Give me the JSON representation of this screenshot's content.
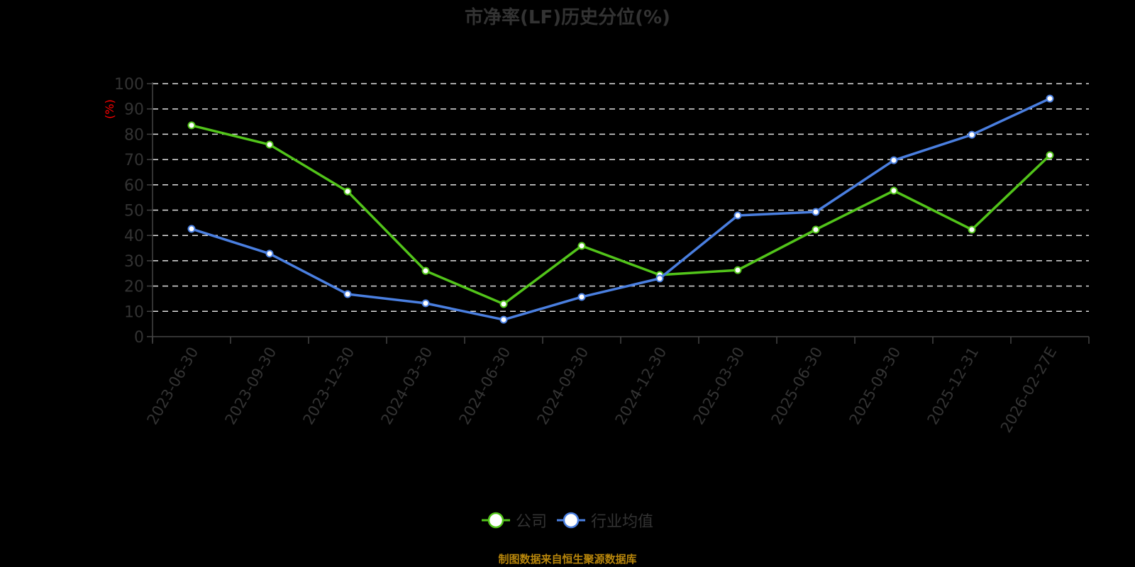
{
  "title": "市净率(LF)历史分位(%)",
  "footer": "制图数据来自恒生聚源数据库",
  "legend": [
    {
      "label": "公司",
      "color": "#52C41A"
    },
    {
      "label": "行业均值",
      "color": "#4A7FE0"
    }
  ],
  "chart_data": {
    "type": "line",
    "title": "市净率(LF)历史分位(%)",
    "xlabel": "",
    "ylabel": "(%)",
    "ylim": [
      0,
      100
    ],
    "yticks": [
      0,
      10,
      20,
      30,
      40,
      50,
      60,
      70,
      80,
      90,
      100
    ],
    "grid": "horizontal dashed",
    "legend_position": "bottom",
    "categories": [
      "2023-06-30",
      "2023-09-30",
      "2023-12-30",
      "2024-03-30",
      "2024-06-30",
      "2024-09-30",
      "2024-12-30",
      "2025-03-30",
      "2025-06-30",
      "2025-09-30",
      "2025-12-31",
      "2026-02-27E"
    ],
    "series": [
      {
        "name": "公司",
        "color": "#52C41A",
        "values": [
          83.5,
          75.9,
          57.4,
          26.0,
          12.9,
          35.9,
          24.4,
          26.3,
          42.3,
          57.7,
          42.3,
          71.7
        ]
      },
      {
        "name": "行业均值",
        "color": "#4A7FE0",
        "values": [
          42.6,
          32.8,
          16.8,
          13.2,
          6.7,
          15.7,
          23.0,
          47.9,
          49.3,
          69.7,
          79.8,
          94.1
        ]
      }
    ]
  }
}
